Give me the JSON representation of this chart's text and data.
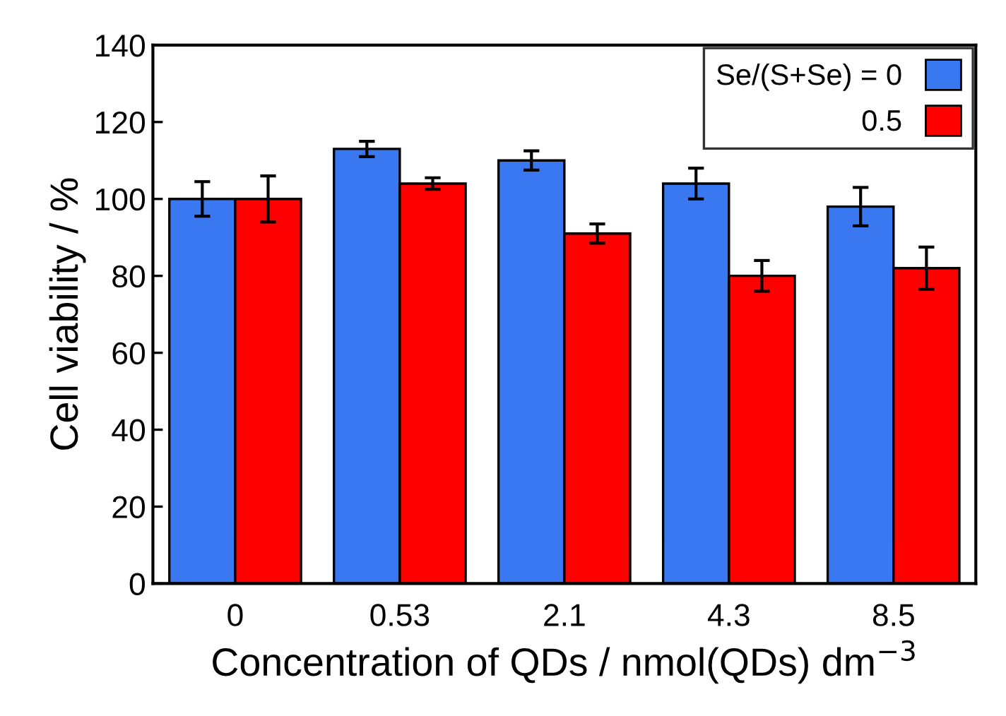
{
  "chart_data": {
    "type": "bar",
    "xlabel": "Concentration of QDs / nmol(QDs) dm$^{−3}$",
    "ylabel": "Cell viability / %",
    "categories": [
      "0",
      "0.53",
      "2.1",
      "4.3",
      "8.5"
    ],
    "series": [
      {
        "name": "Se/(S+Se) = 0",
        "color": "#3a78f2",
        "values": [
          100,
          113,
          110,
          104,
          98
        ],
        "errors": [
          4.5,
          2,
          2.5,
          4,
          5
        ]
      },
      {
        "name": "0.5",
        "color": "#ff0000",
        "values": [
          100,
          104,
          91,
          80,
          82
        ],
        "errors": [
          6,
          1.5,
          2.5,
          4,
          5.5
        ]
      }
    ],
    "ylim": [
      0,
      140
    ],
    "yticks": [
      0,
      20,
      40,
      60,
      80,
      100,
      120,
      140
    ],
    "grid": false,
    "legend": "top right"
  }
}
